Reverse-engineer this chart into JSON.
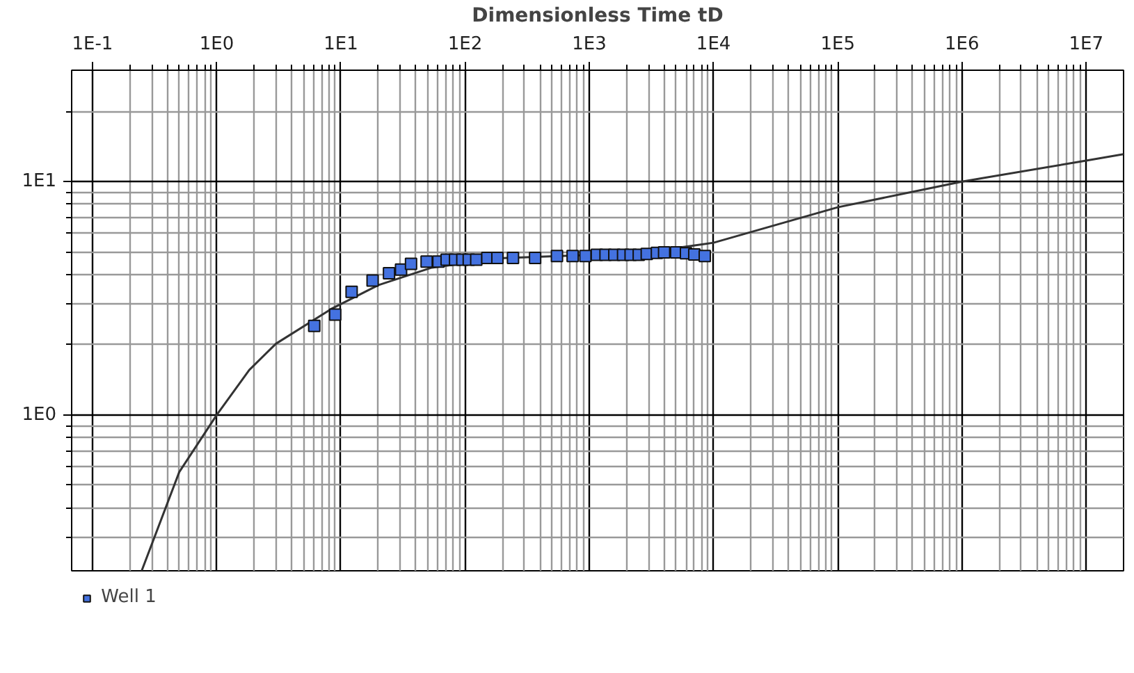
{
  "chart_data": {
    "type": "scatter",
    "xlabel": "Dimensionless Time tD",
    "log": "xy",
    "grid": true,
    "legend": "bottom left",
    "xlim": [
      0.068,
      20000000
    ],
    "ylim": [
      0.215,
      30
    ],
    "xticks": [
      {
        "value": 0.1,
        "label": "1E-1"
      },
      {
        "value": 0.2,
        "label": null
      },
      {
        "value": 0.3,
        "label": null
      },
      {
        "value": 0.4,
        "label": null
      },
      {
        "value": 0.5,
        "label": null
      },
      {
        "value": 0.6,
        "label": null
      },
      {
        "value": 0.7,
        "label": null
      },
      {
        "value": 0.8,
        "label": null
      },
      {
        "value": 0.9,
        "label": null
      },
      {
        "value": 1,
        "label": "1E0"
      },
      {
        "value": 2,
        "label": null
      },
      {
        "value": 3,
        "label": null
      },
      {
        "value": 4,
        "label": null
      },
      {
        "value": 5,
        "label": null
      },
      {
        "value": 6,
        "label": null
      },
      {
        "value": 7,
        "label": null
      },
      {
        "value": 8,
        "label": null
      },
      {
        "value": 9,
        "label": null
      },
      {
        "value": 10,
        "label": "1E1"
      },
      {
        "value": 20,
        "label": null
      },
      {
        "value": 30,
        "label": null
      },
      {
        "value": 40,
        "label": null
      },
      {
        "value": 50,
        "label": null
      },
      {
        "value": 60,
        "label": null
      },
      {
        "value": 70,
        "label": null
      },
      {
        "value": 80,
        "label": null
      },
      {
        "value": 90,
        "label": null
      },
      {
        "value": 100,
        "label": "1E2"
      },
      {
        "value": 200,
        "label": null
      },
      {
        "value": 300,
        "label": null
      },
      {
        "value": 400,
        "label": null
      },
      {
        "value": 500,
        "label": null
      },
      {
        "value": 600,
        "label": null
      },
      {
        "value": 700,
        "label": null
      },
      {
        "value": 800,
        "label": null
      },
      {
        "value": 900,
        "label": null
      },
      {
        "value": 1000,
        "label": "1E3"
      },
      {
        "value": 2000,
        "label": null
      },
      {
        "value": 3000,
        "label": null
      },
      {
        "value": 4000,
        "label": null
      },
      {
        "value": 5000,
        "label": null
      },
      {
        "value": 6000,
        "label": null
      },
      {
        "value": 7000,
        "label": null
      },
      {
        "value": 8000,
        "label": null
      },
      {
        "value": 9000,
        "label": null
      },
      {
        "value": 10000,
        "label": "1E4"
      },
      {
        "value": 20000,
        "label": null
      },
      {
        "value": 30000,
        "label": null
      },
      {
        "value": 40000,
        "label": null
      },
      {
        "value": 50000,
        "label": null
      },
      {
        "value": 60000,
        "label": null
      },
      {
        "value": 70000,
        "label": null
      },
      {
        "value": 80000,
        "label": null
      },
      {
        "value": 90000,
        "label": null
      },
      {
        "value": 100000,
        "label": "1E5"
      },
      {
        "value": 200000,
        "label": null
      },
      {
        "value": 300000,
        "label": null
      },
      {
        "value": 400000,
        "label": null
      },
      {
        "value": 500000,
        "label": null
      },
      {
        "value": 600000,
        "label": null
      },
      {
        "value": 700000,
        "label": null
      },
      {
        "value": 800000,
        "label": null
      },
      {
        "value": 900000,
        "label": null
      },
      {
        "value": 1000000,
        "label": "1E6"
      },
      {
        "value": 2000000,
        "label": null
      },
      {
        "value": 3000000,
        "label": null
      },
      {
        "value": 4000000,
        "label": null
      },
      {
        "value": 5000000,
        "label": null
      },
      {
        "value": 6000000,
        "label": null
      },
      {
        "value": 7000000,
        "label": null
      },
      {
        "value": 8000000,
        "label": null
      },
      {
        "value": 9000000,
        "label": null
      },
      {
        "value": 10000000,
        "label": "1E7"
      }
    ],
    "yticks": [
      {
        "value": 0.3,
        "label": null
      },
      {
        "value": 0.4,
        "label": null
      },
      {
        "value": 0.5,
        "label": null
      },
      {
        "value": 0.6,
        "label": null
      },
      {
        "value": 0.7,
        "label": null
      },
      {
        "value": 0.8,
        "label": null
      },
      {
        "value": 0.9,
        "label": null
      },
      {
        "value": 1,
        "label": "1E0"
      },
      {
        "value": 2,
        "label": null
      },
      {
        "value": 3,
        "label": null
      },
      {
        "value": 4,
        "label": null
      },
      {
        "value": 5,
        "label": null
      },
      {
        "value": 6,
        "label": null
      },
      {
        "value": 7,
        "label": null
      },
      {
        "value": 8,
        "label": null
      },
      {
        "value": 9,
        "label": null
      },
      {
        "value": 10,
        "label": "1E1"
      },
      {
        "value": 20,
        "label": null
      }
    ],
    "series": [
      {
        "type": "line",
        "color": "#333333",
        "x": [
          0.249,
          0.5,
          1,
          1.83,
          3,
          8.4,
          20,
          54,
          200,
          1000,
          3000,
          10000,
          100000,
          1000000,
          10000000,
          20000000
        ],
        "values": [
          0.215,
          0.57,
          1,
          1.56,
          2.02,
          2.85,
          3.6,
          4.28,
          4.7,
          4.85,
          5.0,
          5.47,
          7.76,
          10,
          12.3,
          13.1
        ]
      },
      {
        "name": "Well 1",
        "marker": "square",
        "color": "#4472e0",
        "x": [
          6.1,
          9,
          12.2,
          18,
          24.4,
          30.5,
          36.7,
          49,
          61,
          71,
          83,
          95,
          107,
          123,
          151,
          182,
          243,
          366,
          549,
          734,
          930,
          1150,
          1350,
          1590,
          1870,
          2150,
          2500,
          2900,
          3500,
          4000,
          5000,
          6000,
          7000,
          8500
        ],
        "values": [
          2.41,
          2.69,
          3.37,
          3.77,
          4.05,
          4.2,
          4.44,
          4.54,
          4.54,
          4.63,
          4.63,
          4.63,
          4.63,
          4.63,
          4.71,
          4.71,
          4.71,
          4.71,
          4.8,
          4.8,
          4.8,
          4.86,
          4.86,
          4.86,
          4.86,
          4.86,
          4.86,
          4.9,
          4.95,
          4.97,
          4.97,
          4.93,
          4.87,
          4.8
        ]
      }
    ]
  }
}
